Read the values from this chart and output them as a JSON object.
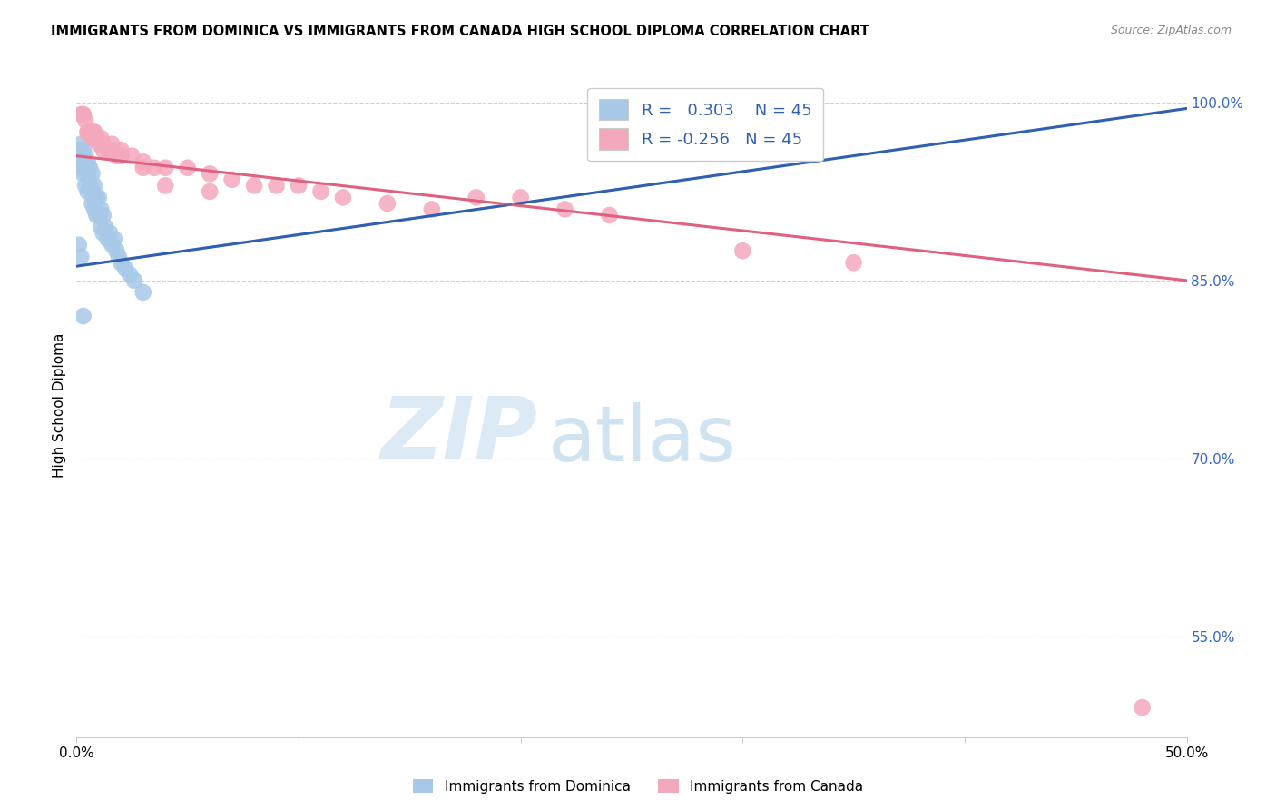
{
  "title": "IMMIGRANTS FROM DOMINICA VS IMMIGRANTS FROM CANADA HIGH SCHOOL DIPLOMA CORRELATION CHART",
  "source": "Source: ZipAtlas.com",
  "ylabel": "High School Diploma",
  "xlim": [
    0.0,
    0.5
  ],
  "ylim": [
    0.465,
    1.025
  ],
  "ytick_vals_right": [
    1.0,
    0.85,
    0.7,
    0.55
  ],
  "ytick_labels_right": [
    "100.0%",
    "85.0%",
    "70.0%",
    "55.0%"
  ],
  "xtick_vals": [
    0.0,
    0.1,
    0.2,
    0.3,
    0.4,
    0.5
  ],
  "xtick_labels": [
    "0.0%",
    "",
    "",
    "",
    "",
    "50.0%"
  ],
  "r_dominica": 0.303,
  "r_canada": -0.256,
  "n_dominica": 45,
  "n_canada": 45,
  "dominica_color": "#a8c8e8",
  "canada_color": "#f4a8bc",
  "dominica_line_color": "#3060b0",
  "canada_line_color": "#e06080",
  "legend_label_dominica": "Immigrants from Dominica",
  "legend_label_canada": "Immigrants from Canada",
  "watermark_zip": "ZIP",
  "watermark_atlas": "atlas",
  "watermark_color_zip": "#c8dff0",
  "watermark_color_atlas": "#b8d4e8",
  "dominica_x": [
    0.001,
    0.001,
    0.002,
    0.002,
    0.002,
    0.003,
    0.003,
    0.003,
    0.004,
    0.004,
    0.004,
    0.005,
    0.005,
    0.005,
    0.006,
    0.006,
    0.007,
    0.007,
    0.007,
    0.008,
    0.008,
    0.008,
    0.009,
    0.009,
    0.01,
    0.01,
    0.011,
    0.011,
    0.012,
    0.012,
    0.013,
    0.014,
    0.015,
    0.016,
    0.017,
    0.018,
    0.019,
    0.02,
    0.022,
    0.024,
    0.026,
    0.03,
    0.001,
    0.002,
    0.003
  ],
  "dominica_y": [
    0.96,
    0.955,
    0.965,
    0.955,
    0.945,
    0.96,
    0.95,
    0.94,
    0.955,
    0.945,
    0.93,
    0.95,
    0.94,
    0.925,
    0.945,
    0.93,
    0.94,
    0.925,
    0.915,
    0.93,
    0.92,
    0.91,
    0.92,
    0.905,
    0.92,
    0.905,
    0.91,
    0.895,
    0.905,
    0.89,
    0.895,
    0.885,
    0.89,
    0.88,
    0.885,
    0.875,
    0.87,
    0.865,
    0.86,
    0.855,
    0.85,
    0.84,
    0.88,
    0.87,
    0.82
  ],
  "canada_x": [
    0.002,
    0.003,
    0.004,
    0.005,
    0.006,
    0.007,
    0.008,
    0.009,
    0.01,
    0.011,
    0.012,
    0.014,
    0.016,
    0.018,
    0.02,
    0.025,
    0.03,
    0.035,
    0.04,
    0.05,
    0.06,
    0.07,
    0.08,
    0.09,
    0.1,
    0.11,
    0.12,
    0.14,
    0.16,
    0.18,
    0.2,
    0.22,
    0.24,
    0.003,
    0.005,
    0.008,
    0.012,
    0.016,
    0.02,
    0.03,
    0.04,
    0.06,
    0.3,
    0.35,
    0.48
  ],
  "canada_y": [
    0.99,
    0.99,
    0.985,
    0.975,
    0.975,
    0.97,
    0.975,
    0.97,
    0.965,
    0.97,
    0.96,
    0.96,
    0.965,
    0.955,
    0.96,
    0.955,
    0.95,
    0.945,
    0.945,
    0.945,
    0.94,
    0.935,
    0.93,
    0.93,
    0.93,
    0.925,
    0.92,
    0.915,
    0.91,
    0.92,
    0.92,
    0.91,
    0.905,
    0.99,
    0.975,
    0.975,
    0.965,
    0.96,
    0.955,
    0.945,
    0.93,
    0.925,
    0.875,
    0.865,
    0.49
  ],
  "blue_trend_x0": 0.0,
  "blue_trend_y0": 0.862,
  "blue_trend_x1": 0.5,
  "blue_trend_y1": 0.995,
  "pink_trend_x0": 0.0,
  "pink_trend_y0": 0.955,
  "pink_trend_x1": 0.5,
  "pink_trend_y1": 0.85
}
